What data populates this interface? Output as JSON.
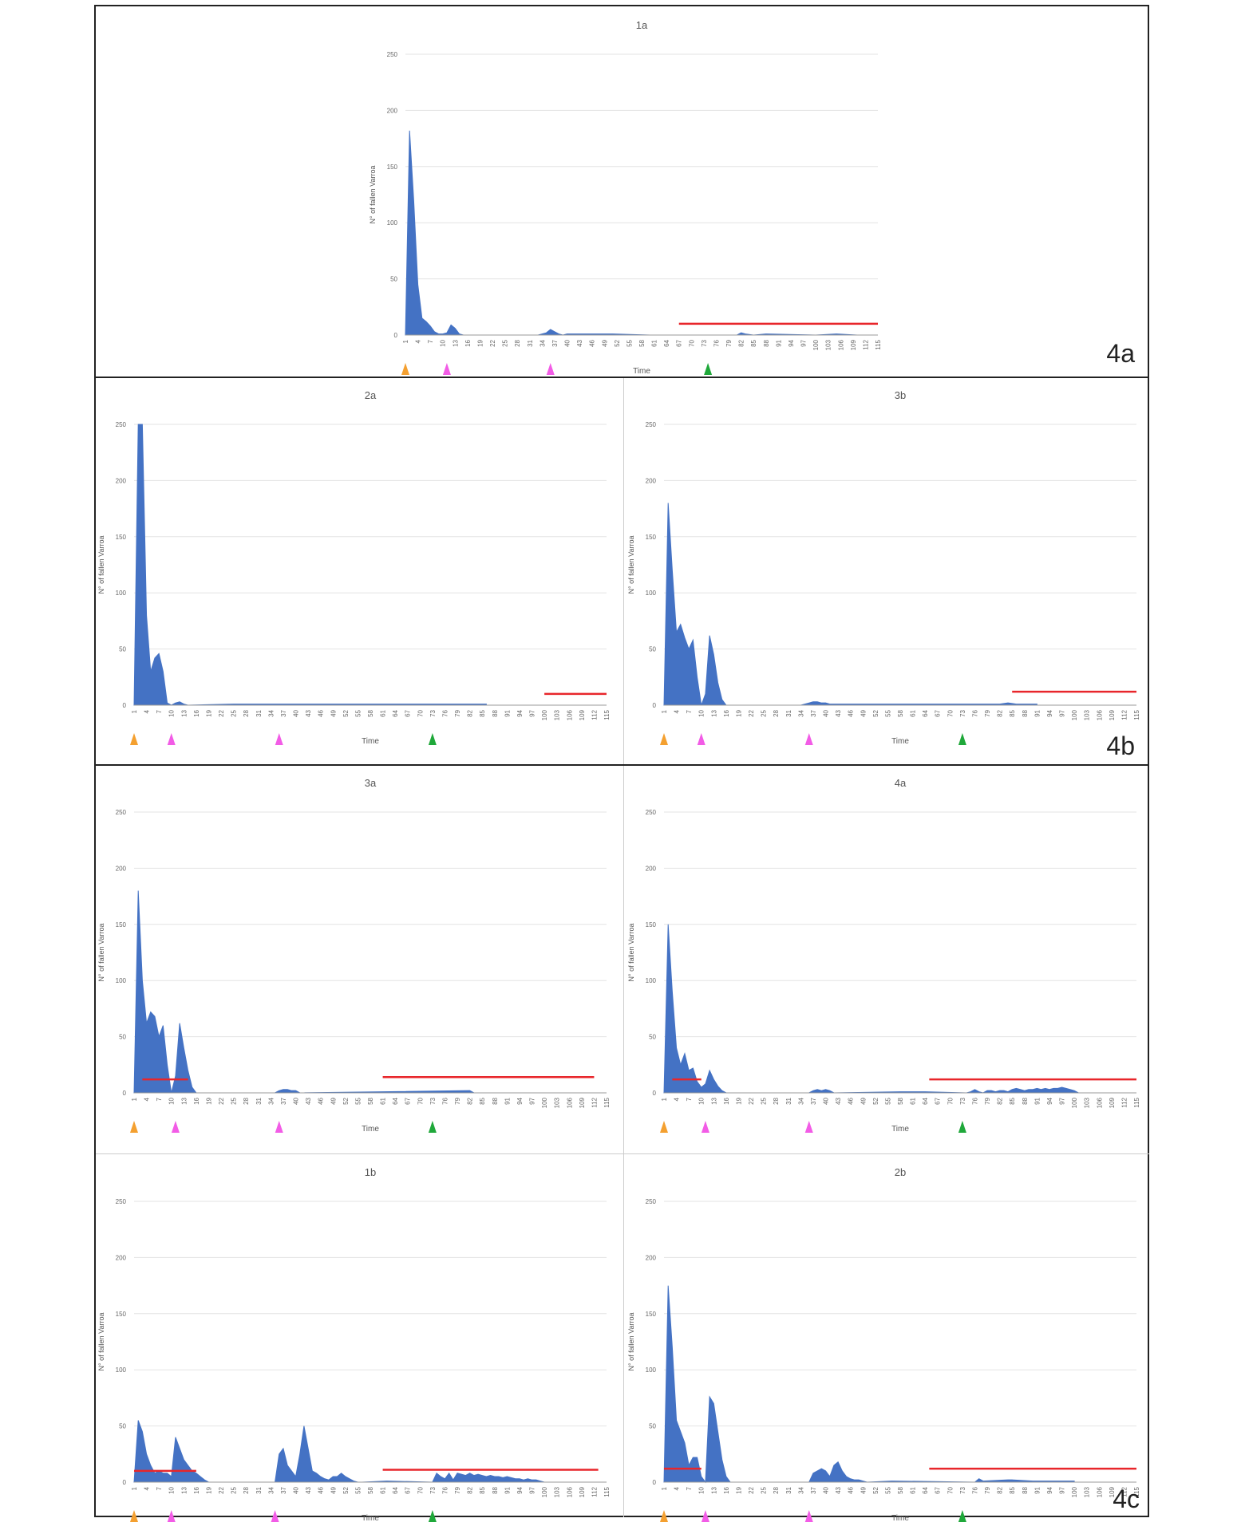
{
  "x_ticks": [
    "1",
    "4",
    "7",
    "10",
    "13",
    "16",
    "19",
    "22",
    "25",
    "28",
    "31",
    "34",
    "37",
    "40",
    "43",
    "46",
    "49",
    "52",
    "55",
    "58",
    "61",
    "64",
    "67",
    "70",
    "73",
    "76",
    "79",
    "82",
    "85",
    "88",
    "91",
    "94",
    "97",
    "100",
    "103",
    "106",
    "109",
    "112",
    "115"
  ],
  "x_label": "Time",
  "y_label": "N° of fallen Varroa",
  "y_ticks": [
    "0",
    "50",
    "100",
    "150",
    "200",
    "250"
  ],
  "colors": {
    "area": "#4472C4",
    "line": "#E8262B",
    "orange_marker": "#F4A030",
    "pink_marker": "#F25CE6",
    "green_marker": "#1FA83A",
    "grid": "#E3E3E3"
  },
  "panel_labels": {
    "p4a": "4a",
    "p4b": "4b",
    "p4c": "4c"
  },
  "chart_data": [
    {
      "id": "1a",
      "type": "area",
      "title": "1a",
      "xlabel": "Time",
      "ylabel": "N° of fallen Varroa",
      "ylim": [
        0,
        250
      ],
      "xlim": [
        1,
        115
      ],
      "series": [
        {
          "x": [
            1,
            2,
            3,
            4,
            5,
            6,
            7,
            8,
            9,
            10,
            11,
            12,
            13,
            14,
            15,
            16,
            33,
            34,
            35,
            36,
            37,
            38,
            39,
            40,
            43,
            47,
            51,
            60,
            81,
            82,
            83,
            85,
            88,
            100,
            105,
            110
          ],
          "values": [
            0,
            182,
            120,
            45,
            15,
            12,
            8,
            3,
            1,
            1,
            2,
            9,
            6,
            1,
            0,
            0,
            0,
            1,
            2,
            5,
            3,
            1,
            0,
            1,
            1,
            1,
            1,
            0,
            0,
            2,
            1,
            0,
            1,
            0,
            1,
            0
          ]
        }
      ],
      "red_line": {
        "x": [
          67,
          115
        ],
        "y": 10
      },
      "markers": [
        {
          "x": 1,
          "color": "orange"
        },
        {
          "x": 11,
          "color": "pink"
        },
        {
          "x": 36,
          "color": "pink"
        },
        {
          "x": 74,
          "color": "green"
        }
      ]
    },
    {
      "id": "2a",
      "type": "area",
      "title": "2a",
      "xlabel": "Time",
      "ylabel": "N° of fallen Varroa",
      "ylim": [
        0,
        250
      ],
      "xlim": [
        1,
        115
      ],
      "series": [
        {
          "x": [
            1,
            2,
            3,
            4,
            5,
            6,
            7,
            8,
            9,
            10,
            11,
            12,
            13,
            14,
            25,
            40,
            47,
            86
          ],
          "values": [
            0,
            250,
            250,
            80,
            30,
            42,
            46,
            30,
            2,
            0,
            2,
            3,
            1,
            0,
            1,
            1,
            1,
            1
          ]
        }
      ],
      "red_line": {
        "x": [
          100,
          115
        ],
        "y": 10
      },
      "markers": [
        {
          "x": 1,
          "color": "orange"
        },
        {
          "x": 10,
          "color": "pink"
        },
        {
          "x": 36,
          "color": "pink"
        },
        {
          "x": 73,
          "color": "green"
        }
      ]
    },
    {
      "id": "3b",
      "type": "area",
      "title": "3b",
      "xlabel": "Time",
      "ylabel": "N° of fallen Varroa",
      "ylim": [
        0,
        250
      ],
      "xlim": [
        1,
        115
      ],
      "series": [
        {
          "x": [
            1,
            2,
            3,
            4,
            5,
            6,
            7,
            8,
            9,
            10,
            11,
            12,
            13,
            14,
            15,
            16,
            17,
            18,
            34,
            35,
            36,
            37,
            38,
            39,
            40,
            41,
            44,
            46,
            64,
            82,
            84,
            86,
            88,
            91
          ],
          "values": [
            0,
            180,
            120,
            65,
            72,
            60,
            50,
            58,
            25,
            0,
            10,
            62,
            45,
            20,
            5,
            0,
            0,
            0,
            0,
            1,
            2,
            3,
            3,
            2,
            2,
            1,
            1,
            1,
            1,
            1,
            2,
            1,
            1,
            1
          ]
        }
      ],
      "red_line": {
        "x": [
          85,
          115
        ],
        "y": 12
      },
      "markers": [
        {
          "x": 1,
          "color": "orange"
        },
        {
          "x": 10,
          "color": "pink"
        },
        {
          "x": 36,
          "color": "pink"
        },
        {
          "x": 73,
          "color": "green"
        }
      ]
    },
    {
      "id": "3a",
      "type": "area",
      "title": "3a",
      "xlabel": "Time",
      "ylabel": "N° of fallen Varroa",
      "ylim": [
        0,
        250
      ],
      "xlim": [
        1,
        115
      ],
      "series": [
        {
          "x": [
            1,
            2,
            3,
            4,
            5,
            6,
            7,
            8,
            9,
            10,
            11,
            12,
            13,
            14,
            15,
            16,
            17,
            35,
            36,
            37,
            38,
            39,
            40,
            41,
            82,
            83
          ],
          "values": [
            0,
            180,
            100,
            62,
            72,
            68,
            50,
            60,
            25,
            0,
            15,
            62,
            40,
            20,
            5,
            0,
            0,
            0,
            2,
            3,
            3,
            2,
            2,
            0,
            2,
            0
          ]
        }
      ],
      "red_lines": [
        {
          "x": [
            3,
            14
          ],
          "y": 12
        },
        {
          "x": 61,
          "x2": 112,
          "y": 14
        }
      ],
      "markers": [
        {
          "x": 1,
          "color": "orange"
        },
        {
          "x": 11,
          "color": "pink"
        },
        {
          "x": 36,
          "color": "pink"
        },
        {
          "x": 73,
          "color": "green"
        }
      ]
    },
    {
      "id": "4a",
      "type": "area",
      "title": "4a",
      "xlabel": "Time",
      "ylabel": "N° of fallen Varroa",
      "ylim": [
        0,
        250
      ],
      "xlim": [
        1,
        115
      ],
      "series": [
        {
          "x": [
            1,
            2,
            3,
            4,
            5,
            6,
            7,
            8,
            9,
            10,
            11,
            12,
            13,
            14,
            15,
            16,
            17,
            36,
            37,
            38,
            39,
            40,
            41,
            42,
            58,
            64,
            74,
            75,
            76,
            77,
            78,
            79,
            80,
            81,
            82,
            83,
            84,
            85,
            86,
            87,
            88,
            89,
            90,
            91,
            92,
            93,
            94,
            95,
            96,
            97,
            98,
            99,
            100,
            101
          ],
          "values": [
            0,
            150,
            90,
            40,
            25,
            35,
            20,
            22,
            10,
            5,
            8,
            20,
            12,
            6,
            2,
            0,
            0,
            0,
            2,
            3,
            2,
            3,
            2,
            0,
            1,
            1,
            0,
            1,
            3,
            1,
            0,
            2,
            2,
            1,
            2,
            2,
            1,
            3,
            4,
            3,
            2,
            3,
            3,
            4,
            3,
            4,
            3,
            4,
            4,
            5,
            4,
            3,
            2,
            0
          ]
        }
      ],
      "red_lines": [
        {
          "x": [
            3,
            10
          ],
          "y": 12
        },
        {
          "x": 65,
          "x2": 115,
          "y": 12
        }
      ],
      "markers": [
        {
          "x": 1,
          "color": "orange"
        },
        {
          "x": 11,
          "color": "pink"
        },
        {
          "x": 36,
          "color": "pink"
        },
        {
          "x": 73,
          "color": "green"
        }
      ]
    },
    {
      "id": "1b",
      "type": "area",
      "title": "1b",
      "xlabel": "Time",
      "ylabel": "N° of fallen Varroa",
      "ylim": [
        0,
        250
      ],
      "xlim": [
        1,
        115
      ],
      "series": [
        {
          "x": [
            1,
            2,
            3,
            4,
            5,
            6,
            7,
            8,
            9,
            10,
            11,
            12,
            13,
            14,
            15,
            16,
            17,
            18,
            19,
            35,
            36,
            37,
            38,
            39,
            40,
            41,
            42,
            43,
            44,
            45,
            46,
            47,
            48,
            49,
            50,
            51,
            52,
            53,
            54,
            55,
            56,
            62,
            73,
            74,
            75,
            76,
            77,
            78,
            79,
            80,
            81,
            82,
            83,
            84,
            85,
            86,
            87,
            88,
            89,
            90,
            91,
            92,
            93,
            94,
            95,
            96,
            97,
            98,
            99,
            100
          ],
          "values": [
            0,
            55,
            45,
            25,
            15,
            8,
            10,
            8,
            8,
            5,
            40,
            30,
            20,
            15,
            10,
            8,
            5,
            2,
            0,
            0,
            25,
            30,
            15,
            10,
            5,
            25,
            50,
            30,
            10,
            8,
            5,
            3,
            2,
            5,
            5,
            8,
            5,
            3,
            1,
            0,
            0,
            1,
            0,
            8,
            5,
            3,
            8,
            2,
            8,
            7,
            6,
            8,
            6,
            7,
            6,
            5,
            6,
            5,
            5,
            4,
            5,
            4,
            3,
            3,
            2,
            3,
            2,
            2,
            1,
            0
          ]
        }
      ],
      "red_lines": [
        {
          "x": [
            1,
            16
          ],
          "y": 10
        },
        {
          "x": 61,
          "x2": 113,
          "y": 11
        }
      ],
      "markers": [
        {
          "x": 1,
          "color": "orange"
        },
        {
          "x": 10,
          "color": "pink"
        },
        {
          "x": 35,
          "color": "pink"
        },
        {
          "x": 73,
          "color": "green"
        }
      ]
    },
    {
      "id": "2b",
      "type": "area",
      "title": "2b",
      "xlabel": "Time",
      "ylabel": "N° of fallen Varroa",
      "ylim": [
        0,
        250
      ],
      "xlim": [
        1,
        115
      ],
      "series": [
        {
          "x": [
            1,
            2,
            3,
            4,
            5,
            6,
            7,
            8,
            9,
            10,
            11,
            12,
            13,
            14,
            15,
            16,
            17,
            36,
            37,
            38,
            39,
            40,
            41,
            42,
            43,
            44,
            45,
            46,
            47,
            48,
            49,
            50,
            56,
            76,
            77,
            78,
            84,
            85,
            90,
            100
          ],
          "values": [
            0,
            175,
            120,
            55,
            45,
            35,
            15,
            22,
            22,
            5,
            0,
            76,
            70,
            45,
            20,
            5,
            0,
            0,
            8,
            10,
            12,
            10,
            5,
            15,
            18,
            10,
            5,
            3,
            2,
            2,
            1,
            0,
            1,
            0,
            3,
            1,
            2,
            2,
            1,
            1
          ]
        }
      ],
      "red_lines": [
        {
          "x": [
            1,
            10
          ],
          "y": 12
        },
        {
          "x": 65,
          "x2": 115,
          "y": 12
        }
      ],
      "markers": [
        {
          "x": 1,
          "color": "orange"
        },
        {
          "x": 11,
          "color": "pink"
        },
        {
          "x": 36,
          "color": "pink"
        },
        {
          "x": 73,
          "color": "green"
        }
      ]
    }
  ]
}
